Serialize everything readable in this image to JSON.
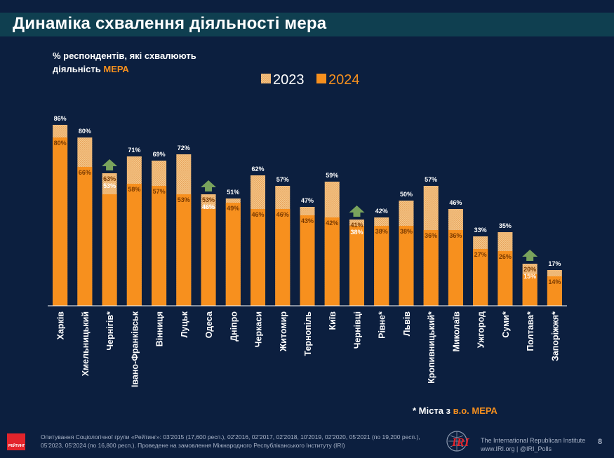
{
  "header": {
    "title": "Динаміка схвалення діяльності мера"
  },
  "subtitle": {
    "line1": "% респондентів, які схвалюють",
    "line2_prefix": "діяльність ",
    "line2_accent": "МЕРА"
  },
  "colors": {
    "accent": "#f7901e",
    "bar_2024": "#f7901e",
    "bar_2023": "#f4c98c",
    "background": "#0c1f3f",
    "title_bar": "#0f3f50",
    "arrow": "#79a35c"
  },
  "chart_data": {
    "type": "bar",
    "categories": [
      "Харків",
      "Хмельницький",
      "Чернігів*",
      "Івано-Франківськ",
      "Вінниця",
      "Луцьк",
      "Одеса",
      "Дніпро",
      "Черкаси",
      "Житомир",
      "Тернопіль",
      "Київ",
      "Чернівці",
      "Рівне*",
      "Львів",
      "Кропивницький*",
      "Миколаїв",
      "Ужгород",
      "Суми*",
      "Полтава*",
      "Запоріжжя*"
    ],
    "series": [
      {
        "name": "2023",
        "values": [
          86,
          80,
          63,
          71,
          69,
          72,
          53,
          51,
          62,
          57,
          47,
          59,
          41,
          42,
          50,
          57,
          46,
          33,
          35,
          20,
          17
        ]
      },
      {
        "name": "2024",
        "values": [
          80,
          66,
          53,
          58,
          57,
          53,
          46,
          49,
          46,
          46,
          43,
          42,
          38,
          38,
          38,
          36,
          36,
          27,
          26,
          15,
          14
        ]
      }
    ],
    "increase_arrows": [
      "Чернігів*",
      "Одеса",
      "Чернівці",
      "Полтава*"
    ],
    "value_suffix": "%",
    "legend": [
      "2023",
      "2024"
    ],
    "legend_position": "top-center",
    "ylim": [
      0,
      90
    ],
    "grid": false
  },
  "footnote": {
    "prefix": "* Міста з ",
    "accent": "в.о. МЕРА"
  },
  "source": {
    "text": "Опитування Соціологічної групи «Рейтинг»: 03'2015 (17,600 респ.), 02'2016, 02'2017, 02'2018, 10'2019, 02'2020, 05'2021 (по 19,200 респ.), 05'2023, 05'2024 (по 16,800 респ.). Проведене на замовлення Міжнародного Республіканського Інституту (IRI)"
  },
  "logos": {
    "rating_label": "РЕЙТИНГ",
    "iri_label": "IRI",
    "iri_line1": "The International Republican Institute",
    "iri_line2": "www.IRI.org | @IRI_Polls"
  },
  "page_number": "8"
}
